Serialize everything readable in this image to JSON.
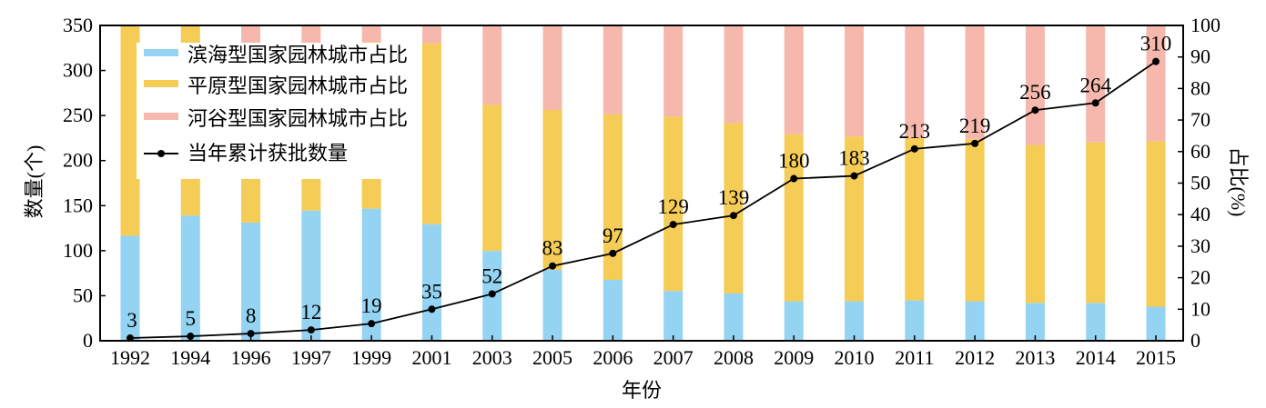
{
  "chart_data": {
    "type": "bar",
    "stacked": true,
    "categories": [
      "1992",
      "1994",
      "1996",
      "1997",
      "1999",
      "2001",
      "2003",
      "2005",
      "2006",
      "2007",
      "2008",
      "2009",
      "2010",
      "2011",
      "2012",
      "2013",
      "2014",
      "2015"
    ],
    "series": [
      {
        "name": "滨海型国家园林城市占比",
        "axis": "right",
        "color": "#94d3f2",
        "values": [
          33.3,
          39.7,
          37.5,
          41.3,
          41.9,
          37.0,
          28.5,
          22.5,
          19.3,
          15.8,
          15.0,
          12.5,
          12.5,
          12.8,
          12.5,
          12.0,
          12.0,
          10.8
        ]
      },
      {
        "name": "平原型国家园林城市占比",
        "axis": "right",
        "color": "#f5cc55",
        "values": [
          66.7,
          60.3,
          50.0,
          50.4,
          52.8,
          57.3,
          46.4,
          50.7,
          52.5,
          55.3,
          54.0,
          53.0,
          52.3,
          51.5,
          51.5,
          50.1,
          50.9,
          52.5
        ]
      },
      {
        "name": "河谷型国家园林城市占比",
        "axis": "right",
        "color": "#f6b8ad",
        "values": [
          0,
          0,
          12.5,
          8.3,
          5.3,
          5.7,
          25.1,
          26.8,
          28.2,
          28.9,
          31.0,
          34.5,
          35.2,
          35.7,
          36.0,
          37.9,
          37.1,
          36.7
        ]
      },
      {
        "name": "当年累计获批数量",
        "type": "line",
        "axis": "left",
        "color": "#000000",
        "values": [
          3,
          5,
          8,
          12,
          19,
          35,
          52,
          83,
          97,
          129,
          139,
          180,
          183,
          213,
          219,
          256,
          264,
          310
        ]
      }
    ],
    "xlabel": "年份",
    "ylabel": "数量(个)",
    "y2label": "占比(%)",
    "ylim": [
      0,
      350
    ],
    "y2lim": [
      0,
      100
    ],
    "yticks": [
      "0",
      "50",
      "100",
      "150",
      "200",
      "250",
      "300",
      "350"
    ],
    "y2ticks": [
      "0",
      "10",
      "20",
      "30",
      "40",
      "50",
      "60",
      "70",
      "80",
      "90",
      "100"
    ],
    "legend_position": "top-left",
    "grid": false
  }
}
